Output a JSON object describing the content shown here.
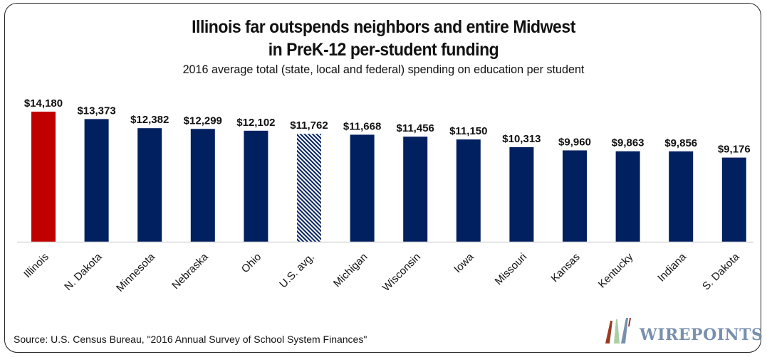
{
  "chart_data": {
    "type": "bar",
    "title": "Illinois far outspends neighbors and entire Midwest",
    "title_line2": "in PreK-12 per-student funding",
    "subtitle": "2016 average total (state, local and federal) spending on education per student",
    "categories": [
      "Illinois",
      "N. Dakota",
      "Minnesota",
      "Nebraska",
      "Ohio",
      "U.S. avg.",
      "Michigan",
      "Wisconsin",
      "Iowa",
      "Missouri",
      "Kansas",
      "Kentucky",
      "Indiana",
      "S. Dakota"
    ],
    "values": [
      14180,
      13373,
      12382,
      12299,
      12102,
      11762,
      11668,
      11456,
      11150,
      10313,
      9960,
      9863,
      9856,
      9176
    ],
    "data_labels": [
      "$14,180",
      "$13,373",
      "$12,382",
      "$12,299",
      "$12,102",
      "$11,762",
      "$11,668",
      "$11,456",
      "$11,150",
      "$10,313",
      "$9,960",
      "$9,863",
      "$9,856",
      "$9,176"
    ],
    "bar_styles": [
      "highlight",
      "normal",
      "normal",
      "normal",
      "normal",
      "hatched",
      "normal",
      "normal",
      "normal",
      "normal",
      "normal",
      "normal",
      "normal",
      "normal"
    ],
    "colors": {
      "highlight": "#c00000",
      "normal": "#002060",
      "hatched": "#002060",
      "baseline": "#d9d9d9"
    },
    "xlabel": "",
    "ylabel": "",
    "ylim": [
      0,
      14180
    ],
    "grid": false,
    "legend": "none"
  },
  "source": "Source: U.S. Census Bureau, \"2016 Annual Survey of School System Finances\"",
  "logo": {
    "text": "WIREPOINTS",
    "colors": [
      "#9a3a22",
      "#a9cfa4",
      "#7890ad"
    ]
  }
}
